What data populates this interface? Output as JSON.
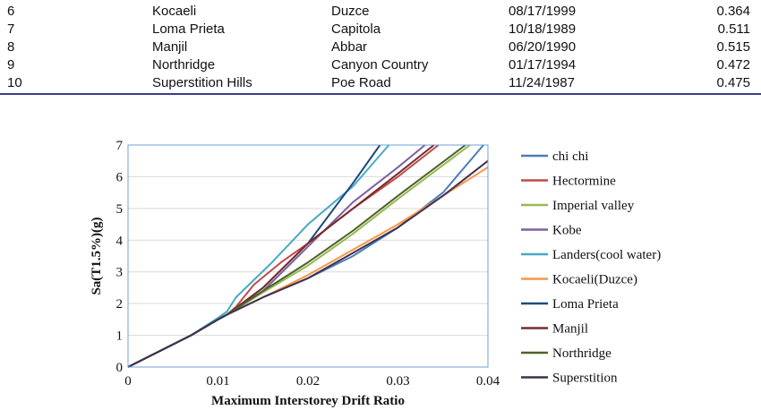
{
  "table": {
    "rows": [
      [
        "6",
        "Kocaeli",
        "Duzce",
        "08/17/1999",
        "0.364"
      ],
      [
        "7",
        "Loma Prieta",
        "Capitola",
        "10/18/1989",
        "0.511"
      ],
      [
        "8",
        "Manjil",
        "Abbar",
        "06/20/1990",
        "0.515"
      ],
      [
        "9",
        "Northridge",
        "Canyon Country",
        "01/17/1994",
        "0.472"
      ],
      [
        "10",
        "Superstition Hills",
        "Poe Road",
        "11/24/1987",
        "0.475"
      ]
    ],
    "rule_color": "#3b3b8f"
  },
  "chart_data": {
    "type": "line",
    "title": "",
    "xlabel": "Maximum Interstorey Drift Ratio",
    "ylabel": "Sa(T1.5%)(g)",
    "xlim": [
      0,
      0.04
    ],
    "ylim": [
      0,
      7
    ],
    "xticks": [
      "0",
      "0.01",
      "0.02",
      "0.03",
      "0.04"
    ],
    "yticks": [
      "0",
      "1",
      "2",
      "3",
      "4",
      "5",
      "6",
      "7"
    ],
    "grid": "horizontal",
    "legend_position": "right",
    "series": [
      {
        "name": "chi chi",
        "color": "#4a7ebb",
        "points": [
          [
            0,
            0
          ],
          [
            0.007,
            1
          ],
          [
            0.01,
            1.5
          ],
          [
            0.011,
            1.65
          ],
          [
            0.015,
            2.2
          ],
          [
            0.02,
            2.8
          ],
          [
            0.025,
            3.5
          ],
          [
            0.03,
            4.4
          ],
          [
            0.035,
            5.5
          ],
          [
            0.0395,
            7
          ]
        ]
      },
      {
        "name": "Hectormine",
        "color": "#be4b48",
        "points": [
          [
            0,
            0
          ],
          [
            0.007,
            1
          ],
          [
            0.01,
            1.5
          ],
          [
            0.011,
            1.65
          ],
          [
            0.012,
            1.9
          ],
          [
            0.014,
            2.6
          ],
          [
            0.017,
            3.3
          ],
          [
            0.02,
            3.9
          ],
          [
            0.025,
            5.0
          ],
          [
            0.03,
            6.0
          ],
          [
            0.0345,
            7
          ]
        ]
      },
      {
        "name": "Imperial valley",
        "color": "#98b954",
        "points": [
          [
            0,
            0
          ],
          [
            0.007,
            1
          ],
          [
            0.01,
            1.5
          ],
          [
            0.011,
            1.65
          ],
          [
            0.015,
            2.35
          ],
          [
            0.02,
            3.2
          ],
          [
            0.025,
            4.2
          ],
          [
            0.03,
            5.3
          ],
          [
            0.038,
            7
          ]
        ]
      },
      {
        "name": "Kobe",
        "color": "#7d60a0",
        "points": [
          [
            0,
            0
          ],
          [
            0.007,
            1
          ],
          [
            0.01,
            1.5
          ],
          [
            0.011,
            1.65
          ],
          [
            0.015,
            2.4
          ],
          [
            0.02,
            3.8
          ],
          [
            0.025,
            5.2
          ],
          [
            0.03,
            6.3
          ],
          [
            0.033,
            7
          ]
        ]
      },
      {
        "name": "Landers(cool water)",
        "color": "#46aac5",
        "points": [
          [
            0,
            0
          ],
          [
            0.007,
            1
          ],
          [
            0.01,
            1.55
          ],
          [
            0.011,
            1.75
          ],
          [
            0.012,
            2.2
          ],
          [
            0.016,
            3.3
          ],
          [
            0.02,
            4.5
          ],
          [
            0.025,
            5.7
          ],
          [
            0.029,
            7
          ]
        ]
      },
      {
        "name": "Kocaeli(Duzce)",
        "color": "#f79646",
        "points": [
          [
            0,
            0
          ],
          [
            0.007,
            1
          ],
          [
            0.01,
            1.5
          ],
          [
            0.011,
            1.65
          ],
          [
            0.015,
            2.2
          ],
          [
            0.02,
            2.9
          ],
          [
            0.025,
            3.7
          ],
          [
            0.03,
            4.5
          ],
          [
            0.035,
            5.4
          ],
          [
            0.04,
            6.3
          ]
        ]
      },
      {
        "name": "Loma Prieta",
        "color": "#1f497d",
        "points": [
          [
            0,
            0
          ],
          [
            0.007,
            1
          ],
          [
            0.01,
            1.5
          ],
          [
            0.011,
            1.65
          ],
          [
            0.015,
            2.5
          ],
          [
            0.02,
            3.9
          ],
          [
            0.025,
            5.8
          ],
          [
            0.028,
            7
          ]
        ]
      },
      {
        "name": "Manjil",
        "color": "#772c2a",
        "points": [
          [
            0,
            0
          ],
          [
            0.007,
            1
          ],
          [
            0.01,
            1.5
          ],
          [
            0.011,
            1.65
          ],
          [
            0.015,
            2.5
          ],
          [
            0.02,
            3.9
          ],
          [
            0.025,
            5.0
          ],
          [
            0.03,
            6.1
          ],
          [
            0.034,
            7
          ]
        ]
      },
      {
        "name": "Northridge",
        "color": "#4f6228",
        "points": [
          [
            0,
            0
          ],
          [
            0.007,
            1
          ],
          [
            0.01,
            1.5
          ],
          [
            0.011,
            1.65
          ],
          [
            0.015,
            2.4
          ],
          [
            0.02,
            3.3
          ],
          [
            0.025,
            4.3
          ],
          [
            0.03,
            5.4
          ],
          [
            0.0375,
            7
          ]
        ]
      },
      {
        "name": "Superstition",
        "color": "#3f3151",
        "points": [
          [
            0,
            0
          ],
          [
            0.007,
            1
          ],
          [
            0.01,
            1.5
          ],
          [
            0.011,
            1.65
          ],
          [
            0.015,
            2.2
          ],
          [
            0.02,
            2.8
          ],
          [
            0.025,
            3.6
          ],
          [
            0.03,
            4.4
          ],
          [
            0.035,
            5.4
          ],
          [
            0.04,
            6.5
          ]
        ]
      }
    ]
  }
}
